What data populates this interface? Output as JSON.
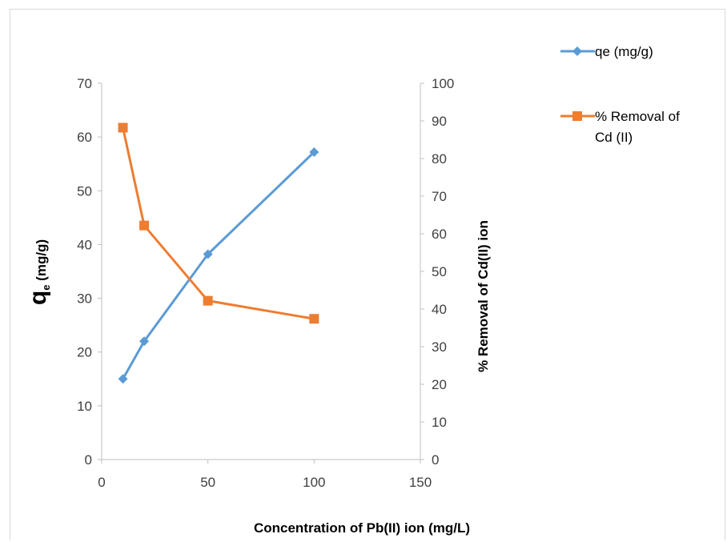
{
  "chart_data": {
    "type": "line",
    "title": "",
    "xlabel": "Concentration of Pb(II) ion (mg/L)",
    "ylabel_main": "q",
    "ylabel_sub": "e",
    "ylabel_rest": " (mg/g)",
    "y2label": "% Removal of Cd(II) ion",
    "xlim": [
      0,
      150
    ],
    "ylim": [
      0,
      70
    ],
    "y2lim": [
      0,
      100
    ],
    "xticks": [
      "0",
      "50",
      "100",
      "150"
    ],
    "yticks": [
      "0",
      "10",
      "20",
      "30",
      "40",
      "50",
      "60",
      "70"
    ],
    "y2ticks": [
      "0",
      "10",
      "20",
      "30",
      "40",
      "50",
      "60",
      "70",
      "80",
      "90",
      "100"
    ],
    "legend_position": "top-right",
    "series": [
      {
        "name": "qe (mg/g)",
        "axis": "left",
        "color": "#5b9bd5",
        "marker": "diamond",
        "x": [
          10,
          20,
          50,
          100
        ],
        "y": [
          15,
          22,
          38.2,
          57.2
        ]
      },
      {
        "name": "% Removal of Cd (II)",
        "name_lines": [
          "% Removal of",
          "Cd (II)"
        ],
        "axis": "right",
        "color": "#ed7d31",
        "marker": "square",
        "x": [
          10,
          20,
          50,
          100
        ],
        "y": [
          88.2,
          62.2,
          42.2,
          37.4
        ]
      }
    ]
  }
}
